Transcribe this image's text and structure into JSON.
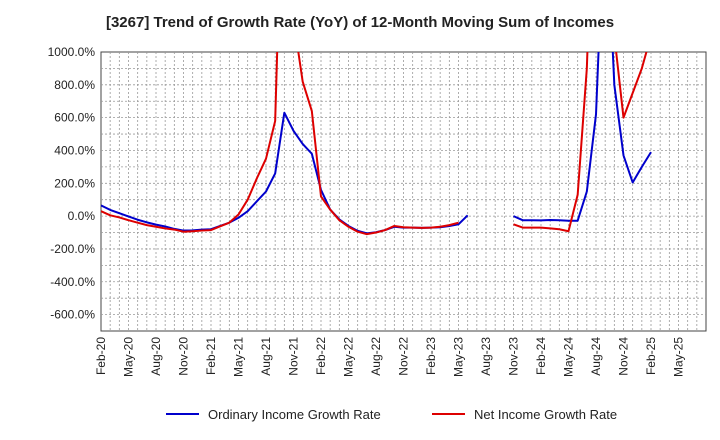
{
  "chart_data": {
    "type": "line",
    "title": "[3267]  Trend of Growth Rate (YoY) of 12-Month Moving Sum of Incomes",
    "xlabel": "",
    "ylabel": "",
    "ylim": [
      -700,
      1000
    ],
    "yticks": [
      1000,
      800,
      600,
      400,
      200,
      0,
      -200,
      -400,
      -600
    ],
    "ytick_labels": [
      "1000.0%",
      "800.0%",
      "600.0%",
      "400.0%",
      "200.0%",
      "0.0%",
      "-200.0%",
      "-400.0%",
      "-600.0%"
    ],
    "xtick_labels": [
      "Feb-20",
      "May-20",
      "Aug-20",
      "Nov-20",
      "Feb-21",
      "May-21",
      "Aug-21",
      "Nov-21",
      "Feb-22",
      "May-22",
      "Aug-22",
      "Nov-22",
      "Feb-23",
      "May-23",
      "Aug-23",
      "Nov-23",
      "Feb-24",
      "May-24",
      "Aug-24",
      "Nov-24",
      "Feb-25",
      "May-25"
    ],
    "x": [
      "2020-02",
      "2020-03",
      "2020-04",
      "2020-05",
      "2020-06",
      "2020-07",
      "2020-08",
      "2020-09",
      "2020-10",
      "2020-11",
      "2020-12",
      "2021-01",
      "2021-02",
      "2021-03",
      "2021-04",
      "2021-05",
      "2021-06",
      "2021-07",
      "2021-08",
      "2021-09",
      "2021-10",
      "2021-11",
      "2021-12",
      "2022-01",
      "2022-02",
      "2022-03",
      "2022-04",
      "2022-05",
      "2022-06",
      "2022-07",
      "2022-08",
      "2022-09",
      "2022-10",
      "2022-11",
      "2022-12",
      "2023-01",
      "2023-02",
      "2023-03",
      "2023-04",
      "2023-05",
      "2023-06",
      "2023-07",
      "2023-08",
      "2023-09",
      "2023-10",
      "2023-11",
      "2023-12",
      "2024-01",
      "2024-02",
      "2024-03",
      "2024-04",
      "2024-05",
      "2024-06",
      "2024-07",
      "2024-08",
      "2024-09",
      "2024-10",
      "2024-11",
      "2024-12",
      "2025-01",
      "2025-02"
    ],
    "grid": true,
    "legend_position": "bottom",
    "series": [
      {
        "name": "Ordinary Income Growth Rate",
        "color": "#0000cc",
        "values": [
          65,
          38,
          18,
          -2,
          -22,
          -38,
          -52,
          -63,
          -78,
          -88,
          -87,
          -82,
          -80,
          -60,
          -40,
          -10,
          30,
          90,
          150,
          260,
          630,
          520,
          440,
          380,
          160,
          40,
          -20,
          -60,
          -90,
          -105,
          -98,
          -85,
          -65,
          -70,
          -70,
          -72,
          -70,
          -68,
          -60,
          -50,
          5,
          null,
          null,
          null,
          null,
          0,
          -25,
          -25,
          -26,
          -24,
          -25,
          -28,
          -28,
          150,
          620,
          2000,
          800,
          370,
          205,
          300,
          390
        ]
      },
      {
        "name": "Net Income Growth Rate",
        "color": "#dd0000",
        "values": [
          30,
          5,
          -8,
          -25,
          -40,
          -55,
          -65,
          -75,
          -82,
          -95,
          -92,
          -88,
          -85,
          -62,
          -40,
          10,
          100,
          230,
          350,
          580,
          2500,
          1200,
          820,
          640,
          120,
          40,
          -25,
          -65,
          -95,
          -110,
          -100,
          -85,
          -60,
          -68,
          -70,
          -72,
          -70,
          -65,
          -55,
          -40,
          null,
          null,
          null,
          null,
          null,
          -50,
          -70,
          -70,
          -70,
          -75,
          -80,
          -92,
          130,
          900,
          2500,
          2500,
          1100,
          600,
          750,
          900,
          1100
        ]
      }
    ]
  }
}
